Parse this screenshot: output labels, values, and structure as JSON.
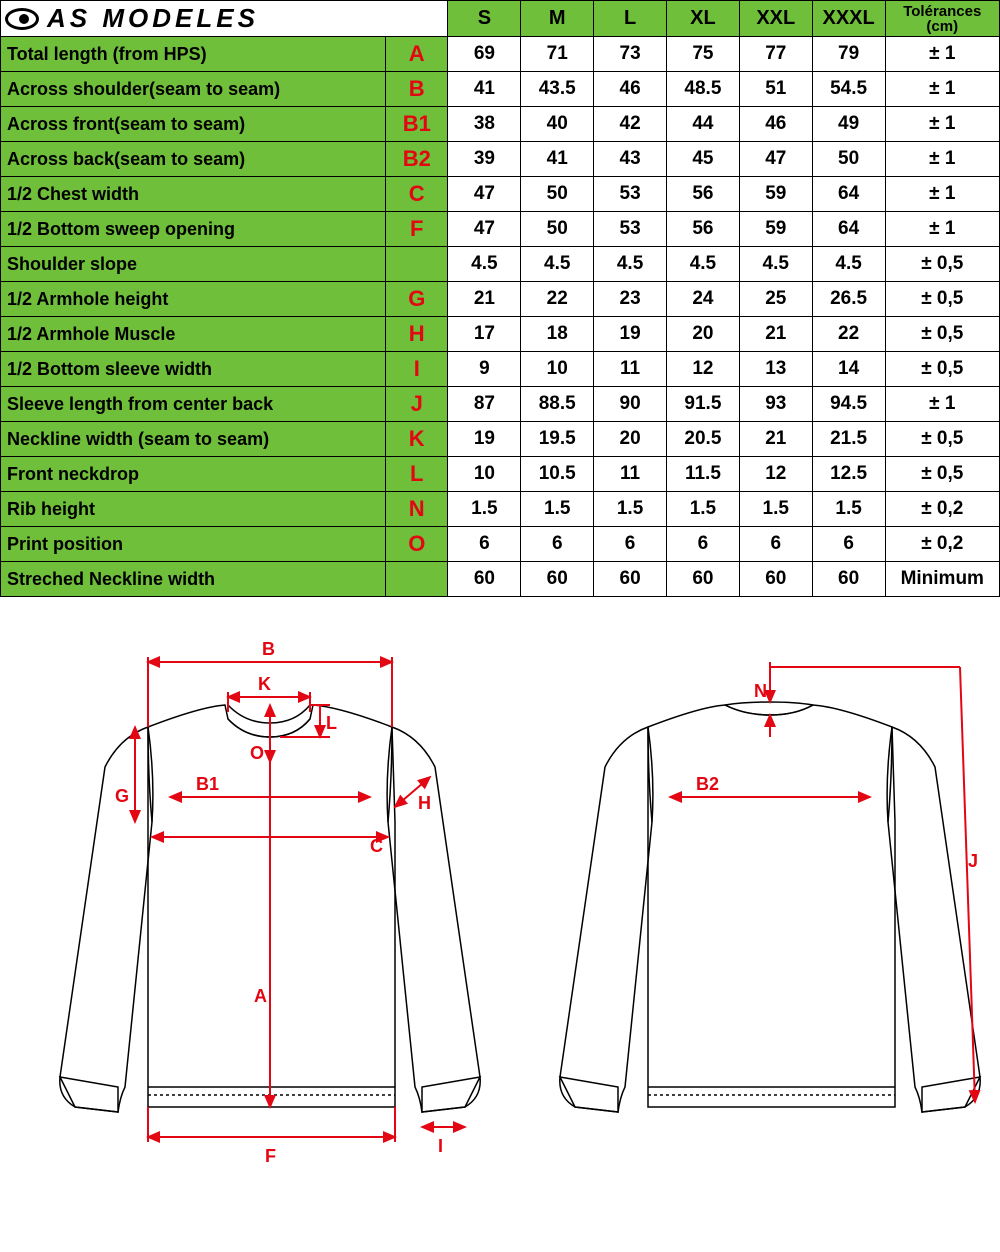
{
  "brand": "AS MODELES",
  "colors": {
    "green": "#6fbf3a",
    "red": "#e30613",
    "black": "#000000",
    "white": "#ffffff"
  },
  "sizes": [
    "S",
    "M",
    "L",
    "XL",
    "XXL",
    "XXXL"
  ],
  "tol_header": {
    "line1": "Tolérances",
    "line2": "(cm)"
  },
  "rows": [
    {
      "label": "Total length (from HPS)",
      "code": "A",
      "vals": [
        "69",
        "71",
        "73",
        "75",
        "77",
        "79"
      ],
      "tol": "± 1"
    },
    {
      "label": "Across shoulder(seam to seam)",
      "code": "B",
      "vals": [
        "41",
        "43.5",
        "46",
        "48.5",
        "51",
        "54.5"
      ],
      "tol": "± 1"
    },
    {
      "label": "Across front(seam to seam)",
      "code": "B1",
      "vals": [
        "38",
        "40",
        "42",
        "44",
        "46",
        "49"
      ],
      "tol": "± 1"
    },
    {
      "label": "Across back(seam to seam)",
      "code": "B2",
      "vals": [
        "39",
        "41",
        "43",
        "45",
        "47",
        "50"
      ],
      "tol": "± 1"
    },
    {
      "label": "1/2 Chest width",
      "code": "C",
      "vals": [
        "47",
        "50",
        "53",
        "56",
        "59",
        "64"
      ],
      "tol": "± 1"
    },
    {
      "label": "1/2 Bottom sweep opening",
      "code": "F",
      "vals": [
        "47",
        "50",
        "53",
        "56",
        "59",
        "64"
      ],
      "tol": "± 1"
    },
    {
      "label": "Shoulder slope",
      "code": "",
      "vals": [
        "4.5",
        "4.5",
        "4.5",
        "4.5",
        "4.5",
        "4.5"
      ],
      "tol": "± 0,5"
    },
    {
      "label": "1/2  Armhole height",
      "code": "G",
      "vals": [
        "21",
        "22",
        "23",
        "24",
        "25",
        "26.5"
      ],
      "tol": "± 0,5"
    },
    {
      "label": "1/2  Armhole Muscle",
      "code": "H",
      "vals": [
        "17",
        "18",
        "19",
        "20",
        "21",
        "22"
      ],
      "tol": "± 0,5"
    },
    {
      "label": "1/2  Bottom sleeve width",
      "code": "I",
      "vals": [
        "9",
        "10",
        "11",
        "12",
        "13",
        "14"
      ],
      "tol": "± 0,5"
    },
    {
      "label": "Sleeve length from center back",
      "code": "J",
      "vals": [
        "87",
        "88.5",
        "90",
        "91.5",
        "93",
        "94.5"
      ],
      "tol": "± 1"
    },
    {
      "label": "Neckline width (seam to seam)",
      "code": "K",
      "vals": [
        "19",
        "19.5",
        "20",
        "20.5",
        "21",
        "21.5"
      ],
      "tol": "± 0,5"
    },
    {
      "label": "Front neckdrop",
      "code": "L",
      "vals": [
        "10",
        "10.5",
        "11",
        "11.5",
        "12",
        "12.5"
      ],
      "tol": "± 0,5"
    },
    {
      "label": "Rib height",
      "code": "N",
      "vals": [
        "1.5",
        "1.5",
        "1.5",
        "1.5",
        "1.5",
        "1.5"
      ],
      "tol": "± 0,2"
    },
    {
      "label": "Print position",
      "code": "O",
      "vals": [
        "6",
        "6",
        "6",
        "6",
        "6",
        "6"
      ],
      "tol": "± 0,2"
    },
    {
      "label": "Streched Neckline width",
      "code": "",
      "vals": [
        "60",
        "60",
        "60",
        "60",
        "60",
        "60"
      ],
      "tol": "Minimum"
    }
  ],
  "diagram_labels": [
    "A",
    "B",
    "B1",
    "B2",
    "C",
    "F",
    "G",
    "H",
    "I",
    "J",
    "K",
    "L",
    "N",
    "O"
  ]
}
